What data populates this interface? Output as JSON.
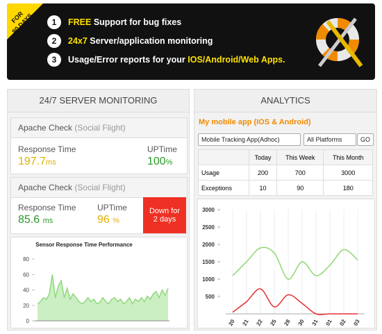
{
  "banner": {
    "ribbon": [
      "FOR",
      "90 DAYS"
    ],
    "items": [
      {
        "number": "1",
        "parts": [
          {
            "text": "FREE",
            "highlight": true
          },
          {
            "text": " Support for bug fixes",
            "highlight": false
          }
        ]
      },
      {
        "number": "2",
        "parts": [
          {
            "text": "24x7",
            "highlight": true
          },
          {
            "text": " Server/application monitoring",
            "highlight": false
          }
        ]
      },
      {
        "number": "3",
        "parts": [
          {
            "text": "Usage/Error reports for your ",
            "highlight": false
          },
          {
            "text": "IOS/Android/Web Apps.",
            "highlight": true
          }
        ]
      }
    ]
  },
  "monitoring": {
    "title": "24/7 SERVER MONITORING",
    "cards": [
      {
        "name": "Apache Check",
        "sub": "(Social Flight)",
        "response_label": "Response Time",
        "response": 197.7,
        "response_unit": "ms",
        "uptime_label": "UPTime",
        "uptime": 100,
        "uptime_unit": "%"
      },
      {
        "name": "Apache Check",
        "sub": "(Social Flight)",
        "response_label": "Response Time",
        "response": 85.6,
        "response_unit": "ms",
        "uptime_label": "UPTime",
        "uptime": 96,
        "uptime_unit": "%",
        "status": "Down for 2 days"
      }
    ]
  },
  "analytics": {
    "title": "ANALYTICS",
    "app": "My mobile app (IOS & Android)",
    "app_select": "Mobile Tracking App(Adhoc)",
    "platform_select": "All Platforms",
    "button": "GO",
    "table": {
      "columns": [
        "Today",
        "This Week",
        "This Month"
      ],
      "rows": [
        [
          "Usage",
          "200",
          "700",
          "3000"
        ],
        [
          "Exceptions",
          "10",
          "90",
          "180"
        ]
      ]
    }
  },
  "chart_data": [
    {
      "type": "area",
      "title": "Sensor Response Time Performance",
      "values": [
        22,
        25,
        30,
        28,
        35,
        60,
        30,
        45,
        52,
        30,
        42,
        28,
        35,
        30,
        25,
        22,
        25,
        30,
        25,
        28,
        22,
        24,
        30,
        25,
        22,
        28,
        30,
        25,
        28,
        22,
        25,
        30,
        22,
        28,
        25,
        30,
        25,
        32,
        28,
        35,
        38,
        30,
        40,
        33,
        42
      ],
      "color": "#8ed97a",
      "ylim": [
        0,
        90
      ],
      "yticks": [
        0,
        20,
        40,
        60,
        80
      ]
    },
    {
      "type": "line",
      "categories": [
        "20",
        "21",
        "22",
        "25",
        "28",
        "30",
        "31",
        "01",
        "02",
        "03"
      ],
      "series": [
        {
          "color": "#8fd66f",
          "values": [
            1100,
            1500,
            1900,
            1750,
            1000,
            1500,
            1100,
            1400,
            1850,
            1550
          ]
        },
        {
          "color": "#e53030",
          "values": [
            50,
            350,
            720,
            200,
            550,
            300,
            0,
            0,
            0,
            0
          ]
        }
      ],
      "ylim": [
        0,
        3000
      ],
      "yticks": [
        500,
        1000,
        1500,
        2000,
        2500,
        3000
      ],
      "grid": true
    }
  ]
}
